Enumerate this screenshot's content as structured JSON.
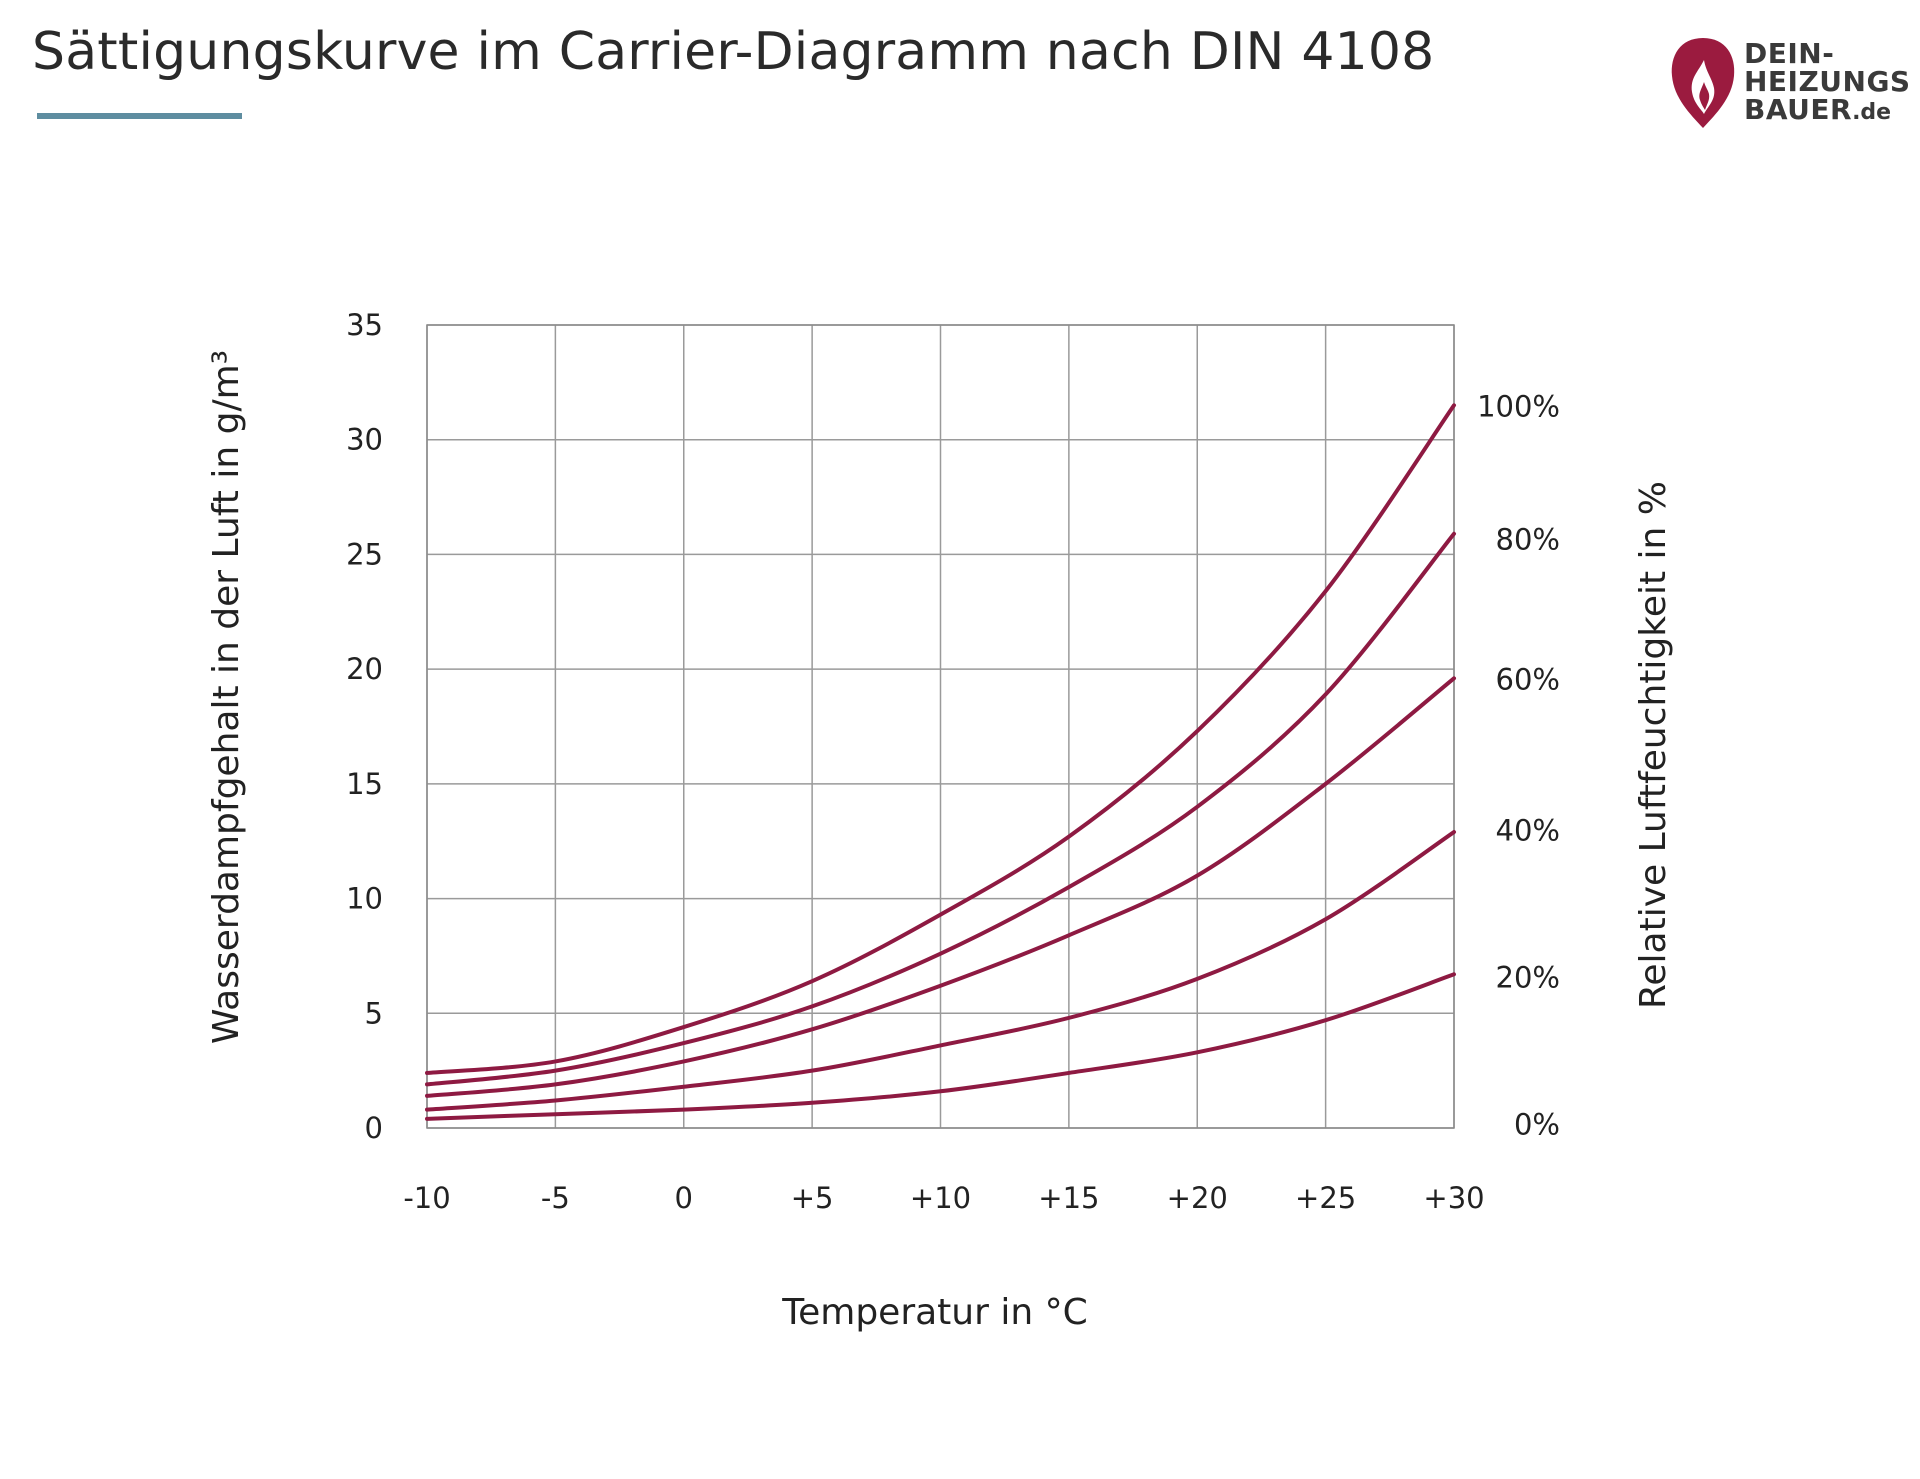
{
  "page": {
    "title": "Sättigungskurve im Carrier-Diagramm nach DIN 4108",
    "accent_color": "#5e8da0"
  },
  "logo": {
    "lines": [
      "DEIN-",
      "HEIZUNGS",
      "BAUER"
    ],
    "suffix": ".de",
    "icon": "flame-shield-icon",
    "color": "#9b1b3f"
  },
  "chart_data": {
    "type": "line",
    "title": "Sättigungskurve im Carrier-Diagramm nach DIN 4108",
    "xlabel": "Temperatur in °C",
    "ylabel": "Wasserdampfgehalt in der Luft in g/m³",
    "y2label": "Relative Luftfeuchtigkeit in %",
    "x": [
      -10,
      -5,
      0,
      5,
      10,
      15,
      20,
      25,
      30
    ],
    "x_tick_labels": [
      "-10",
      "-5",
      "0",
      "+5",
      "+10",
      "+15",
      "+20",
      "+25",
      "+30"
    ],
    "y_ticks": [
      0,
      5,
      10,
      15,
      20,
      25,
      30,
      35
    ],
    "y_tick_labels": [
      "0",
      "5",
      "10",
      "15",
      "20",
      "25",
      "30",
      "35"
    ],
    "xlim": [
      -10,
      30
    ],
    "ylim": [
      0,
      35
    ],
    "grid": true,
    "line_color": "#8e1a42",
    "right_labels": [
      {
        "label": "100%",
        "value": 31.5
      },
      {
        "label": "80%",
        "value": 25.7
      },
      {
        "label": "60%",
        "value": 19.6
      },
      {
        "label": "40%",
        "value": 13.0
      },
      {
        "label": "20%",
        "value": 6.6
      },
      {
        "label": "0%",
        "value": 0.2
      }
    ],
    "series": [
      {
        "name": "100%",
        "values": [
          2.4,
          2.9,
          4.4,
          6.4,
          9.3,
          12.7,
          17.3,
          23.4,
          31.5
        ]
      },
      {
        "name": "80%",
        "values": [
          1.9,
          2.5,
          3.7,
          5.3,
          7.6,
          10.5,
          14.0,
          18.9,
          25.9
        ]
      },
      {
        "name": "60%",
        "values": [
          1.4,
          1.9,
          2.9,
          4.3,
          6.2,
          8.4,
          11.0,
          15.0,
          19.6
        ]
      },
      {
        "name": "40%",
        "values": [
          0.8,
          1.2,
          1.8,
          2.5,
          3.6,
          4.8,
          6.5,
          9.1,
          12.9
        ]
      },
      {
        "name": "20%",
        "values": [
          0.4,
          0.6,
          0.8,
          1.1,
          1.6,
          2.4,
          3.3,
          4.7,
          6.7
        ]
      }
    ]
  }
}
